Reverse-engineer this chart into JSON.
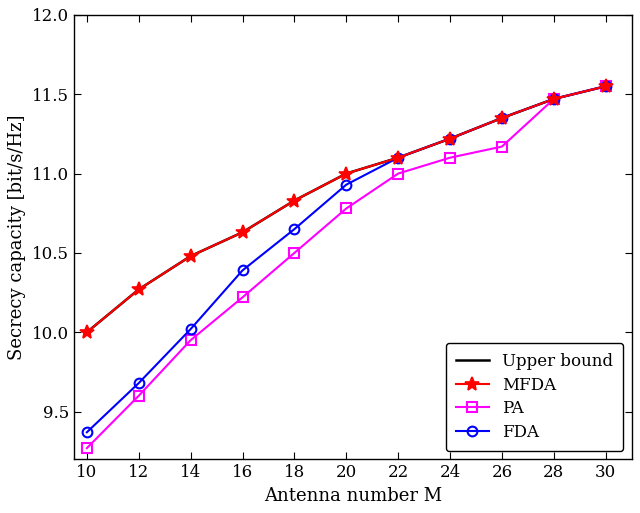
{
  "x": [
    10,
    12,
    14,
    16,
    18,
    20,
    22,
    24,
    26,
    28,
    30
  ],
  "MFDA": [
    10.0,
    10.27,
    10.48,
    10.63,
    10.83,
    11.0,
    11.1,
    11.22,
    11.35,
    11.47,
    11.55
  ],
  "Upper_bound": [
    10.0,
    10.27,
    10.48,
    10.63,
    10.83,
    11.0,
    11.1,
    11.22,
    11.35,
    11.47,
    11.55
  ],
  "PA": [
    9.27,
    9.6,
    9.95,
    10.22,
    10.5,
    10.78,
    11.0,
    11.1,
    11.17,
    11.47,
    11.55
  ],
  "FDA": [
    9.37,
    9.68,
    10.02,
    10.39,
    10.65,
    10.93,
    11.1,
    11.22,
    11.35,
    11.47,
    11.55
  ],
  "MFDA_color": "#ff0000",
  "Upper_bound_color": "#000000",
  "PA_color": "#ff00ff",
  "FDA_color": "#0000ff",
  "xlabel": "Antenna number M",
  "ylabel": "Secrecy capacity [bit/s/Hz]",
  "xlim": [
    9.5,
    31.0
  ],
  "ylim": [
    9.2,
    12.0
  ],
  "yticks": [
    9.5,
    10.0,
    10.5,
    11.0,
    11.5,
    12.0
  ],
  "xticks": [
    10,
    12,
    14,
    16,
    18,
    20,
    22,
    24,
    26,
    28,
    30
  ],
  "legend_labels": [
    "MFDA",
    "Upper bound",
    "PA",
    "FDA"
  ],
  "legend_loc": "lower right"
}
